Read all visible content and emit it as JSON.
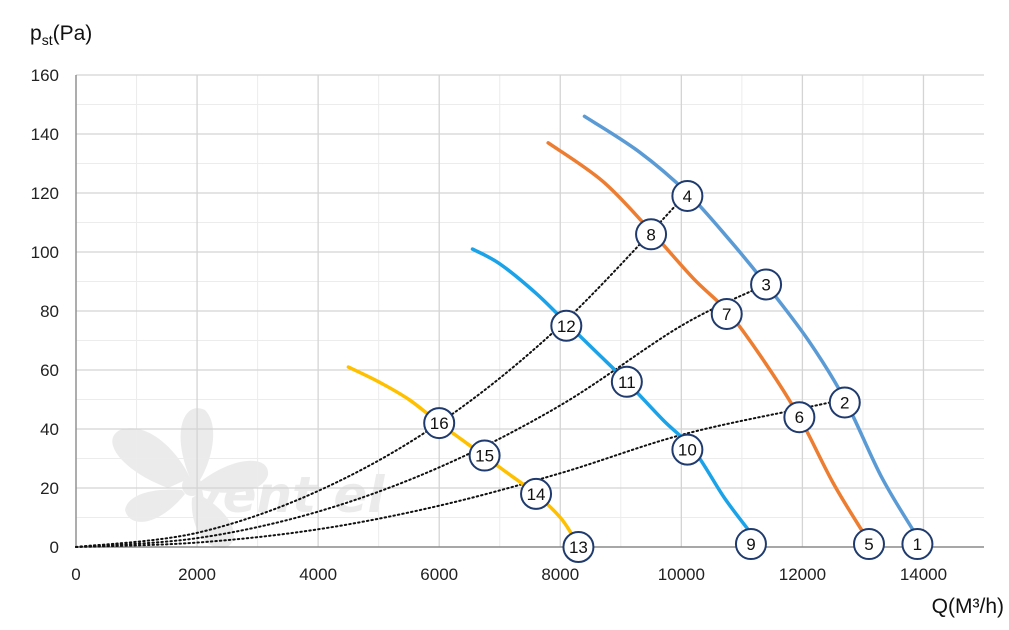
{
  "chart_data": {
    "type": "line",
    "xlabel": "Q(M³/h)",
    "ylabel_main": "p",
    "ylabel_sub": "st",
    "ylabel_unit": "(Pa)",
    "xlim": [
      0,
      15000
    ],
    "ylim": [
      0,
      160
    ],
    "x_ticks": [
      "0",
      "2000",
      "4000",
      "6000",
      "8000",
      "10000",
      "12000",
      "14000"
    ],
    "y_ticks": [
      "0",
      "20",
      "40",
      "60",
      "80",
      "100",
      "120",
      "140",
      "160"
    ],
    "grid": true,
    "watermark": "vent el",
    "series": [
      {
        "color": "#5b9bd5",
        "x": [
          8400,
          9300,
          10100,
          10800,
          11400,
          12100,
          12700,
          13300,
          13850
        ],
        "y": [
          146,
          134,
          120,
          104,
          89,
          70,
          50,
          24,
          5
        ]
      },
      {
        "color": "#ed7d31",
        "x": [
          7800,
          8700,
          9500,
          10200,
          10800,
          11400,
          11950,
          12500,
          13000
        ],
        "y": [
          137,
          124,
          107,
          91,
          79,
          62,
          44,
          22,
          5
        ]
      },
      {
        "color": "#1aa3e8",
        "x": [
          6550,
          7000,
          7600,
          8100,
          8600,
          9100,
          9700,
          10200,
          10700,
          11100
        ],
        "y": [
          101,
          96,
          86,
          76,
          66,
          56,
          43,
          33,
          17,
          6
        ]
      },
      {
        "color": "#ffc000",
        "x": [
          4500,
          5000,
          5500,
          6000,
          6400,
          6800,
          7200,
          7600,
          8000,
          8200
        ],
        "y": [
          61,
          56,
          50,
          42,
          36,
          30,
          24,
          18,
          10,
          4
        ]
      }
    ],
    "system_curves": [
      {
        "x": [
          0,
          2000,
          4000,
          6000,
          8000,
          10100
        ],
        "y": [
          0,
          4.8,
          19,
          42,
          75,
          120
        ]
      },
      {
        "x": [
          0,
          2000,
          4000,
          6000,
          8000,
          10000,
          11400
        ],
        "y": [
          0,
          3,
          12,
          27,
          48,
          75,
          89
        ]
      },
      {
        "x": [
          0,
          2000,
          4000,
          6000,
          8000,
          10000,
          12000,
          12700
        ],
        "y": [
          0,
          1.5,
          6,
          14,
          25,
          38,
          47,
          50
        ]
      }
    ],
    "markers": [
      {
        "label": "1",
        "x": 13900,
        "y": 1
      },
      {
        "label": "2",
        "x": 12700,
        "y": 49
      },
      {
        "label": "3",
        "x": 11400,
        "y": 89
      },
      {
        "label": "4",
        "x": 10100,
        "y": 119
      },
      {
        "label": "5",
        "x": 13100,
        "y": 1
      },
      {
        "label": "6",
        "x": 11950,
        "y": 44
      },
      {
        "label": "7",
        "x": 10750,
        "y": 79
      },
      {
        "label": "8",
        "x": 9500,
        "y": 106
      },
      {
        "label": "9",
        "x": 11150,
        "y": 1
      },
      {
        "label": "10",
        "x": 10100,
        "y": 33
      },
      {
        "label": "11",
        "x": 9100,
        "y": 56
      },
      {
        "label": "12",
        "x": 8100,
        "y": 75
      },
      {
        "label": "13",
        "x": 8300,
        "y": 0
      },
      {
        "label": "14",
        "x": 7600,
        "y": 18
      },
      {
        "label": "15",
        "x": 6750,
        "y": 31
      },
      {
        "label": "16",
        "x": 6000,
        "y": 42
      }
    ]
  }
}
